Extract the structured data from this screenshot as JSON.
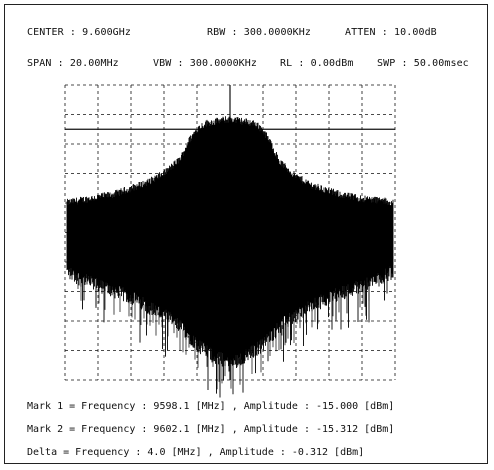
{
  "header": {
    "center": "CENTER : 9.600GHz",
    "rbw": "RBW : 300.0000KHz",
    "atten": "ATTEN : 10.00dB",
    "span": "SPAN : 20.00MHz",
    "vbw": "VBW : 300.0000KHz",
    "rl": "RL : 0.00dBm",
    "swp": "SWP : 50.00msec"
  },
  "markers": {
    "mark1": "Mark 1 = Frequency : 9598.1 [MHz] ,  Amplitude : -15.000 [dBm]",
    "mark2": "Mark 2 = Frequency : 9602.1 [MHz] ,  Amplitude : -15.312 [dBm]",
    "delta": "Delta  = Frequency : 4.0 [MHz] ,  Amplitude : -0.312 [dBm]"
  },
  "chart_data": {
    "type": "line",
    "xlabel": "",
    "ylabel": "",
    "xlim": [
      9590,
      9610
    ],
    "ylim": [
      -100,
      0
    ],
    "grid": true,
    "grid_divisions": {
      "x": 10,
      "y": 10
    },
    "reference_line_dbm": -15,
    "series": [
      {
        "values_note_free": true,
        "x": [
          9590,
          9591,
          9592,
          9593,
          9594,
          9595,
          9596,
          9597,
          9597.5,
          9598,
          9598.5,
          9599,
          9599.5,
          9600,
          9600.5,
          9601,
          9601.5,
          9602,
          9602.5,
          9603,
          9604,
          9605,
          9606,
          9607,
          9608,
          9609,
          9610
        ],
        "upper": [
          -40,
          -39,
          -38,
          -37,
          -35,
          -33,
          -30,
          -25,
          -19,
          -15,
          -13,
          -12.5,
          -12,
          -11.5,
          -12,
          -12.5,
          -13,
          -15.3,
          -20,
          -26,
          -31,
          -34,
          -36,
          -37.5,
          -38.5,
          -39,
          -40
        ],
        "lower": [
          -63,
          -66,
          -68,
          -70,
          -72,
          -75,
          -78,
          -82,
          -85,
          -88,
          -90,
          -92,
          -93,
          -95,
          -93,
          -92,
          -90,
          -88,
          -85,
          -82,
          -78,
          -75,
          -72,
          -70,
          -68,
          -66,
          -63
        ]
      }
    ]
  }
}
